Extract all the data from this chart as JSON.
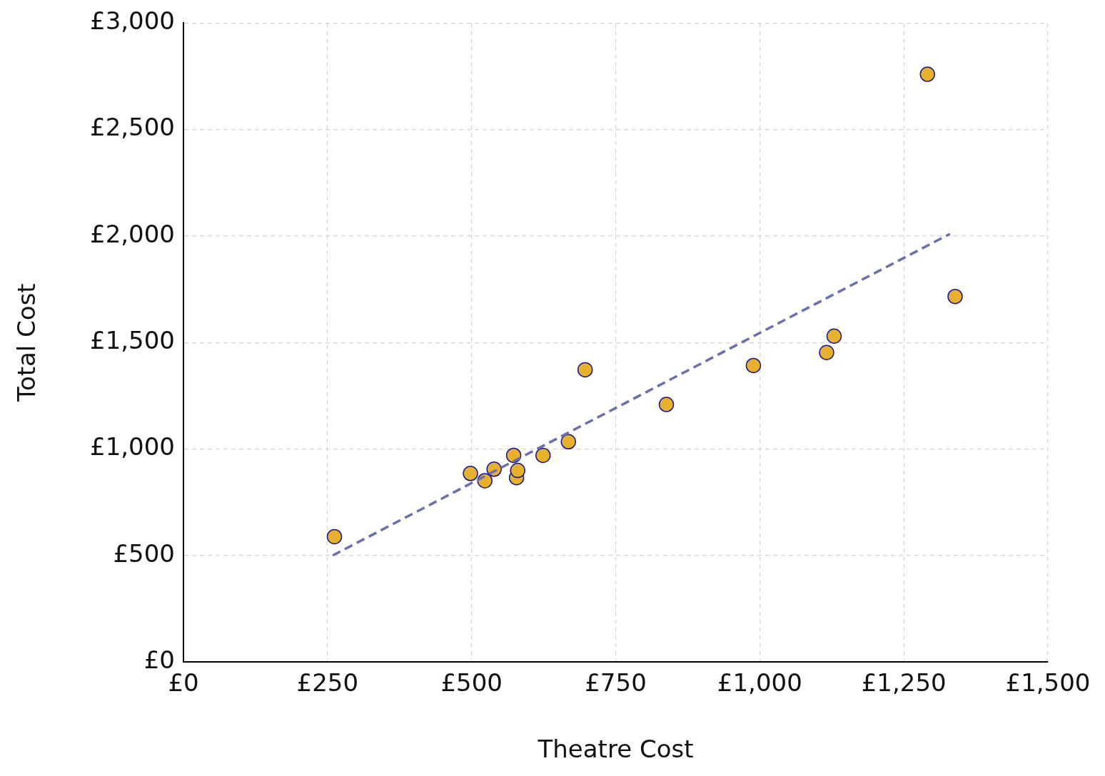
{
  "chart_data": {
    "type": "scatter",
    "xlabel": "Theatre Cost",
    "ylabel": "Total Cost",
    "xlim": [
      0,
      1500
    ],
    "ylim": [
      0,
      3000
    ],
    "xticks": [
      {
        "value": 0,
        "label": "£0"
      },
      {
        "value": 250,
        "label": "£250"
      },
      {
        "value": 500,
        "label": "£500"
      },
      {
        "value": 750,
        "label": "£750"
      },
      {
        "value": 1000,
        "label": "£1,000"
      },
      {
        "value": 1250,
        "label": "£1,250"
      },
      {
        "value": 1500,
        "label": "£1,500"
      }
    ],
    "yticks": [
      {
        "value": 0,
        "label": "£0"
      },
      {
        "value": 500,
        "label": "£500"
      },
      {
        "value": 1000,
        "label": "£1,000"
      },
      {
        "value": 1500,
        "label": "£1,500"
      },
      {
        "value": 2000,
        "label": "£2,000"
      },
      {
        "value": 2500,
        "label": "£2,500"
      },
      {
        "value": 3000,
        "label": "£3,000"
      }
    ],
    "grid": true,
    "marker": "circle",
    "series": [
      {
        "type": "scatter",
        "color": "#e8b02f",
        "x": [
          262,
          498,
          523,
          539,
          573,
          578,
          580,
          624,
          668,
          697,
          838,
          989,
          1116,
          1129,
          1291,
          1339
        ],
        "values": [
          588,
          885,
          851,
          905,
          970,
          865,
          899,
          970,
          1034,
          1372,
          1209,
          1392,
          1453,
          1530,
          2760,
          1716
        ]
      },
      {
        "type": "line",
        "color": "#6a6fb0",
        "line_style": "dashed",
        "marker": "none",
        "x": [
          259,
          1330
        ],
        "values": [
          500,
          2010
        ]
      }
    ]
  }
}
